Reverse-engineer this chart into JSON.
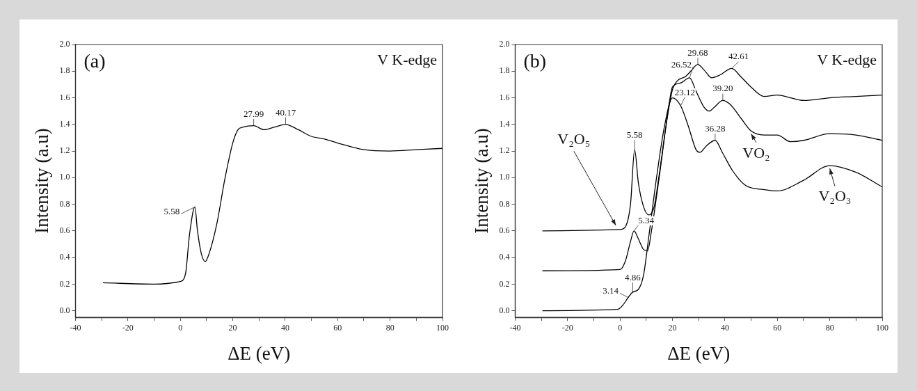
{
  "chart_data": [
    {
      "type": "line",
      "title": "(a)",
      "xlabel": "ΔE (eV)",
      "ylabel": "Intensity (a.u)",
      "grid": false,
      "legend": false,
      "marker": "none",
      "line_style": "solid",
      "xlim": [
        -40,
        100
      ],
      "ylim": [
        -0.05,
        2.0
      ],
      "xticks": [
        -40,
        {
          "value": -30,
          "label": null
        },
        -20,
        {
          "value": -10,
          "label": null
        },
        0,
        {
          "value": 10,
          "label": null
        },
        20,
        {
          "value": 30,
          "label": null
        },
        40,
        {
          "value": 50,
          "label": null
        },
        60,
        {
          "value": 70,
          "label": null
        },
        80,
        {
          "value": 90,
          "label": null
        },
        100
      ],
      "yticks": [
        {
          "value": 0,
          "label": "0.0"
        },
        {
          "value": 0.2,
          "label": "0.2"
        },
        {
          "value": 0.4,
          "label": "0.4"
        },
        {
          "value": 0.6,
          "label": "0.6"
        },
        {
          "value": 0.8,
          "label": "0.8"
        },
        {
          "value": 1.0,
          "label": "1.0"
        },
        {
          "value": 1.2,
          "label": "1.2"
        },
        {
          "value": 1.4,
          "label": "1.4"
        },
        {
          "value": 1.6,
          "label": "1.6"
        },
        {
          "value": 1.8,
          "label": "1.8"
        },
        {
          "value": 2.0,
          "label": "2.0"
        }
      ],
      "series": [
        {
          "color": "#000000",
          "x": [
            -29.5,
            -10,
            0,
            2,
            3.5,
            5.58,
            6.5,
            8,
            9.5,
            11,
            14,
            17,
            20,
            22,
            24,
            27.99,
            32,
            36,
            40.17,
            45,
            50,
            55,
            60,
            70,
            80,
            90,
            100
          ],
          "values": [
            0.21,
            0.2,
            0.22,
            0.28,
            0.57,
            0.78,
            0.61,
            0.43,
            0.37,
            0.43,
            0.66,
            0.99,
            1.26,
            1.36,
            1.38,
            1.39,
            1.36,
            1.38,
            1.4,
            1.36,
            1.31,
            1.29,
            1.26,
            1.21,
            1.2,
            1.21,
            1.22
          ]
        }
      ],
      "annotations": [
        "V K-edge",
        {
          "text": "5.58",
          "x": 5.58,
          "y": 0.78
        },
        {
          "text": "27.99",
          "x": 27.99,
          "y": 1.39
        },
        {
          "text": "40.17",
          "x": 40.17,
          "y": 1.4
        }
      ]
    },
    {
      "type": "line",
      "title": "(b)",
      "xlabel": "ΔE (eV)",
      "ylabel": "Intensity (a.u)",
      "grid": false,
      "legend": false,
      "marker": "none",
      "line_style": "solid",
      "xlim": [
        -40,
        100
      ],
      "ylim": [
        -0.05,
        2.0
      ],
      "xticks": [
        -40,
        {
          "value": -30,
          "label": null
        },
        -20,
        {
          "value": -10,
          "label": null
        },
        0,
        {
          "value": 10,
          "label": null
        },
        20,
        {
          "value": 30,
          "label": null
        },
        40,
        {
          "value": 50,
          "label": null
        },
        60,
        {
          "value": 70,
          "label": null
        },
        80,
        {
          "value": 90,
          "label": null
        },
        100
      ],
      "yticks": [
        {
          "value": 0,
          "label": "0.0"
        },
        {
          "value": 0.2,
          "label": "0.2"
        },
        {
          "value": 0.4,
          "label": "0.4"
        },
        {
          "value": 0.6,
          "label": "0.6"
        },
        {
          "value": 0.8,
          "label": "0.8"
        },
        {
          "value": 1.0,
          "label": "1.0"
        },
        {
          "value": 1.2,
          "label": "1.2"
        },
        {
          "value": 1.4,
          "label": "1.4"
        },
        {
          "value": 1.6,
          "label": "1.6"
        },
        {
          "value": 1.8,
          "label": "1.8"
        },
        {
          "value": 2.0,
          "label": "2.0"
        }
      ],
      "series": [
        {
          "name": "V₂O₅",
          "color": "#000000",
          "x": [
            -29.6,
            0,
            2,
            4,
            5.58,
            7,
            9,
            11,
            13,
            15,
            18,
            20,
            22,
            25,
            27,
            29.68,
            32,
            35,
            38,
            42.61,
            46,
            50,
            55,
            60,
            65,
            70,
            80,
            90,
            100
          ],
          "values": [
            0.6,
            0.61,
            0.63,
            0.8,
            1.21,
            0.96,
            0.78,
            0.72,
            0.78,
            1.03,
            1.45,
            1.66,
            1.73,
            1.76,
            1.8,
            1.85,
            1.81,
            1.75,
            1.77,
            1.82,
            1.76,
            1.68,
            1.61,
            1.62,
            1.6,
            1.58,
            1.6,
            1.61,
            1.62
          ]
        },
        {
          "name": "VO₂",
          "color": "#000000",
          "x": [
            -29.6,
            0,
            2,
            4,
            5.34,
            7,
            9,
            10.5,
            12,
            15,
            18,
            20,
            23,
            26.52,
            29,
            32,
            34,
            36,
            39.2,
            42,
            46,
            50,
            55,
            60,
            65,
            70,
            80,
            90,
            100
          ],
          "values": [
            0.3,
            0.31,
            0.37,
            0.52,
            0.6,
            0.54,
            0.46,
            0.45,
            0.6,
            1.01,
            1.45,
            1.68,
            1.71,
            1.75,
            1.65,
            1.53,
            1.5,
            1.53,
            1.58,
            1.55,
            1.45,
            1.35,
            1.32,
            1.32,
            1.27,
            1.28,
            1.33,
            1.32,
            1.28
          ]
        },
        {
          "name": "V₂O₃",
          "color": "#000000",
          "x": [
            -29.6,
            -1,
            1,
            3.14,
            4.86,
            7,
            9,
            11,
            14,
            17,
            20,
            23.12,
            26,
            29,
            30.5,
            33,
            36.28,
            39,
            43,
            48,
            55,
            60,
            70,
            80,
            90,
            100
          ],
          "values": [
            0,
            0.01,
            0.04,
            0.1,
            0.14,
            0.16,
            0.27,
            0.56,
            1.01,
            1.39,
            1.6,
            1.54,
            1.39,
            1.21,
            1.19,
            1.24,
            1.28,
            1.19,
            1.05,
            0.94,
            0.91,
            0.9,
            0.98,
            1.09,
            1.04,
            0.93
          ]
        }
      ],
      "annotations": [
        "V K-edge",
        {
          "text": "5.58",
          "x": 5.58,
          "y": 1.21
        },
        {
          "text": "5.34",
          "x": 5.34,
          "y": 0.6
        },
        {
          "text": "3.14",
          "x": 3.14,
          "y": 0.1
        },
        {
          "text": "4.86",
          "x": 4.86,
          "y": 0.14
        },
        {
          "text": "23.12",
          "x": 23.12,
          "y": 1.54
        },
        {
          "text": "26.52",
          "x": 26.52,
          "y": 1.75
        },
        {
          "text": "29.68",
          "x": 29.68,
          "y": 1.85
        },
        {
          "text": "42.61",
          "x": 42.61,
          "y": 1.82
        },
        {
          "text": "39.20",
          "x": 39.2,
          "y": 1.58
        },
        {
          "text": "36.28",
          "x": 36.28,
          "y": 1.28
        }
      ]
    }
  ]
}
